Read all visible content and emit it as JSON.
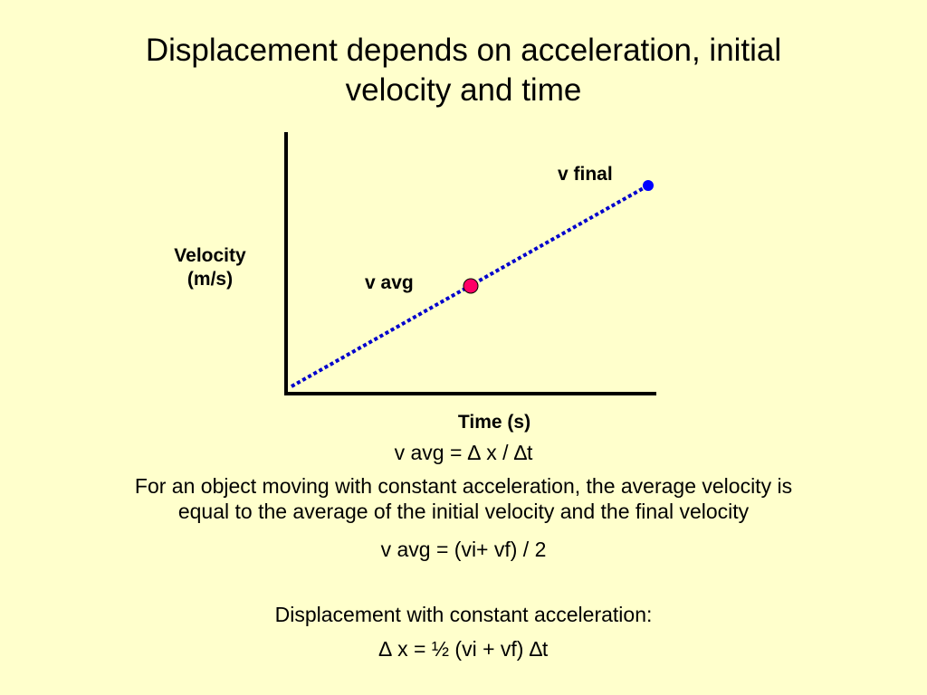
{
  "slide": {
    "title_line1": "Displacement depends on acceleration, initial",
    "title_line2": "velocity and time"
  },
  "diagram": {
    "ylabel_line1": "Velocity",
    "ylabel_line2": "(m/s)",
    "xlabel": "Time (s)",
    "label_v_final": "v final",
    "label_v_avg": "v avg",
    "colors": {
      "line": "#0000CC",
      "v_final_point": "#0000FF",
      "v_avg_point": "#FF0066",
      "axes": "#000000"
    }
  },
  "text": {
    "formula_vavg_def": "v avg = ∆ x / ∆t",
    "para_line1": "For an object moving with constant acceleration, the average velocity is",
    "para_line2": "equal to the average of the initial velocity and the final velocity",
    "formula_vavg_avg": "v avg = (vi+ vf) / 2",
    "heading_displacement": "Displacement with constant acceleration:",
    "formula_displacement": "∆ x = ½ (vi + vf) ∆t"
  }
}
